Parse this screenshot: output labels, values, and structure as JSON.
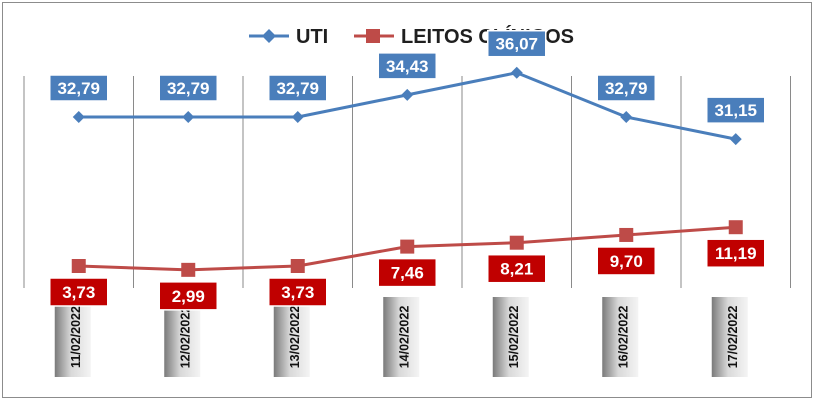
{
  "chart_data": {
    "type": "line",
    "title": "",
    "xlabel": "",
    "ylabel": "",
    "categories": [
      "11/02/2022",
      "12/02/2022",
      "13/02/2022",
      "14/02/2022",
      "15/02/2022",
      "16/02/2022",
      "17/02/2022"
    ],
    "series": [
      {
        "name": "UTI",
        "color": "#4a7ebb",
        "marker": "diamond",
        "values": [
          32.79,
          32.79,
          32.79,
          34.43,
          36.07,
          32.79,
          31.15
        ],
        "labels": [
          "32,79",
          "32,79",
          "32,79",
          "34,43",
          "36,07",
          "32,79",
          "31,15"
        ]
      },
      {
        "name": "LEITOS CLÍNICOS",
        "color": "#be4b48",
        "label_color": "#c00000",
        "marker": "square",
        "values": [
          3.73,
          2.99,
          3.73,
          7.46,
          8.21,
          9.7,
          11.19
        ],
        "labels": [
          "3,73",
          "2,99",
          "3,73",
          "7,46",
          "8,21",
          "9,70",
          "11,19"
        ]
      }
    ],
    "legend_position": "top",
    "grid": "vertical"
  }
}
